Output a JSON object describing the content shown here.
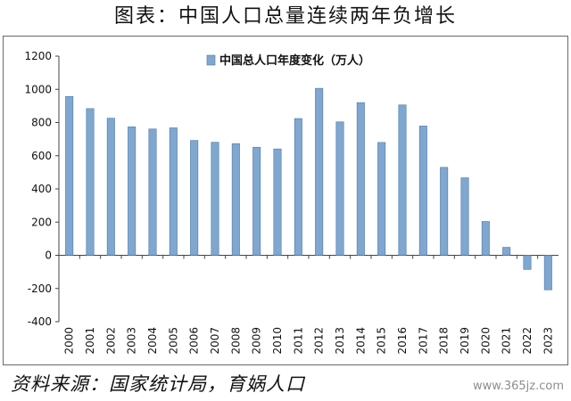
{
  "header": {
    "title": "图表：中国人口总量连续两年负增长"
  },
  "footer": {
    "source": "资料来源：国家统计局，育娲人口",
    "watermark": "www.365jz.com"
  },
  "colors": {
    "bar": "#7fa7cf",
    "bar_edge": "#4b79a8",
    "axis": "#444444",
    "text": "#111111"
  },
  "chart_data": {
    "type": "bar",
    "title": "",
    "xlabel": "",
    "ylabel": "",
    "ylim": [
      -400,
      1200
    ],
    "yticks": [
      -400,
      -200,
      0,
      200,
      400,
      600,
      800,
      1000,
      1200
    ],
    "grid": false,
    "legend_position": "top-center",
    "categories": [
      "2000",
      "2001",
      "2002",
      "2003",
      "2004",
      "2005",
      "2006",
      "2007",
      "2008",
      "2009",
      "2010",
      "2011",
      "2012",
      "2013",
      "2014",
      "2015",
      "2016",
      "2017",
      "2018",
      "2019",
      "2020",
      "2021",
      "2022",
      "2023"
    ],
    "series": [
      {
        "name": "中国总人口年度变化（万人）",
        "values": [
          957,
          884,
          826,
          774,
          761,
          768,
          692,
          681,
          673,
          651,
          641,
          824,
          1006,
          804,
          920,
          680,
          906,
          779,
          530,
          467,
          204,
          48,
          -85,
          -208
        ]
      }
    ]
  }
}
